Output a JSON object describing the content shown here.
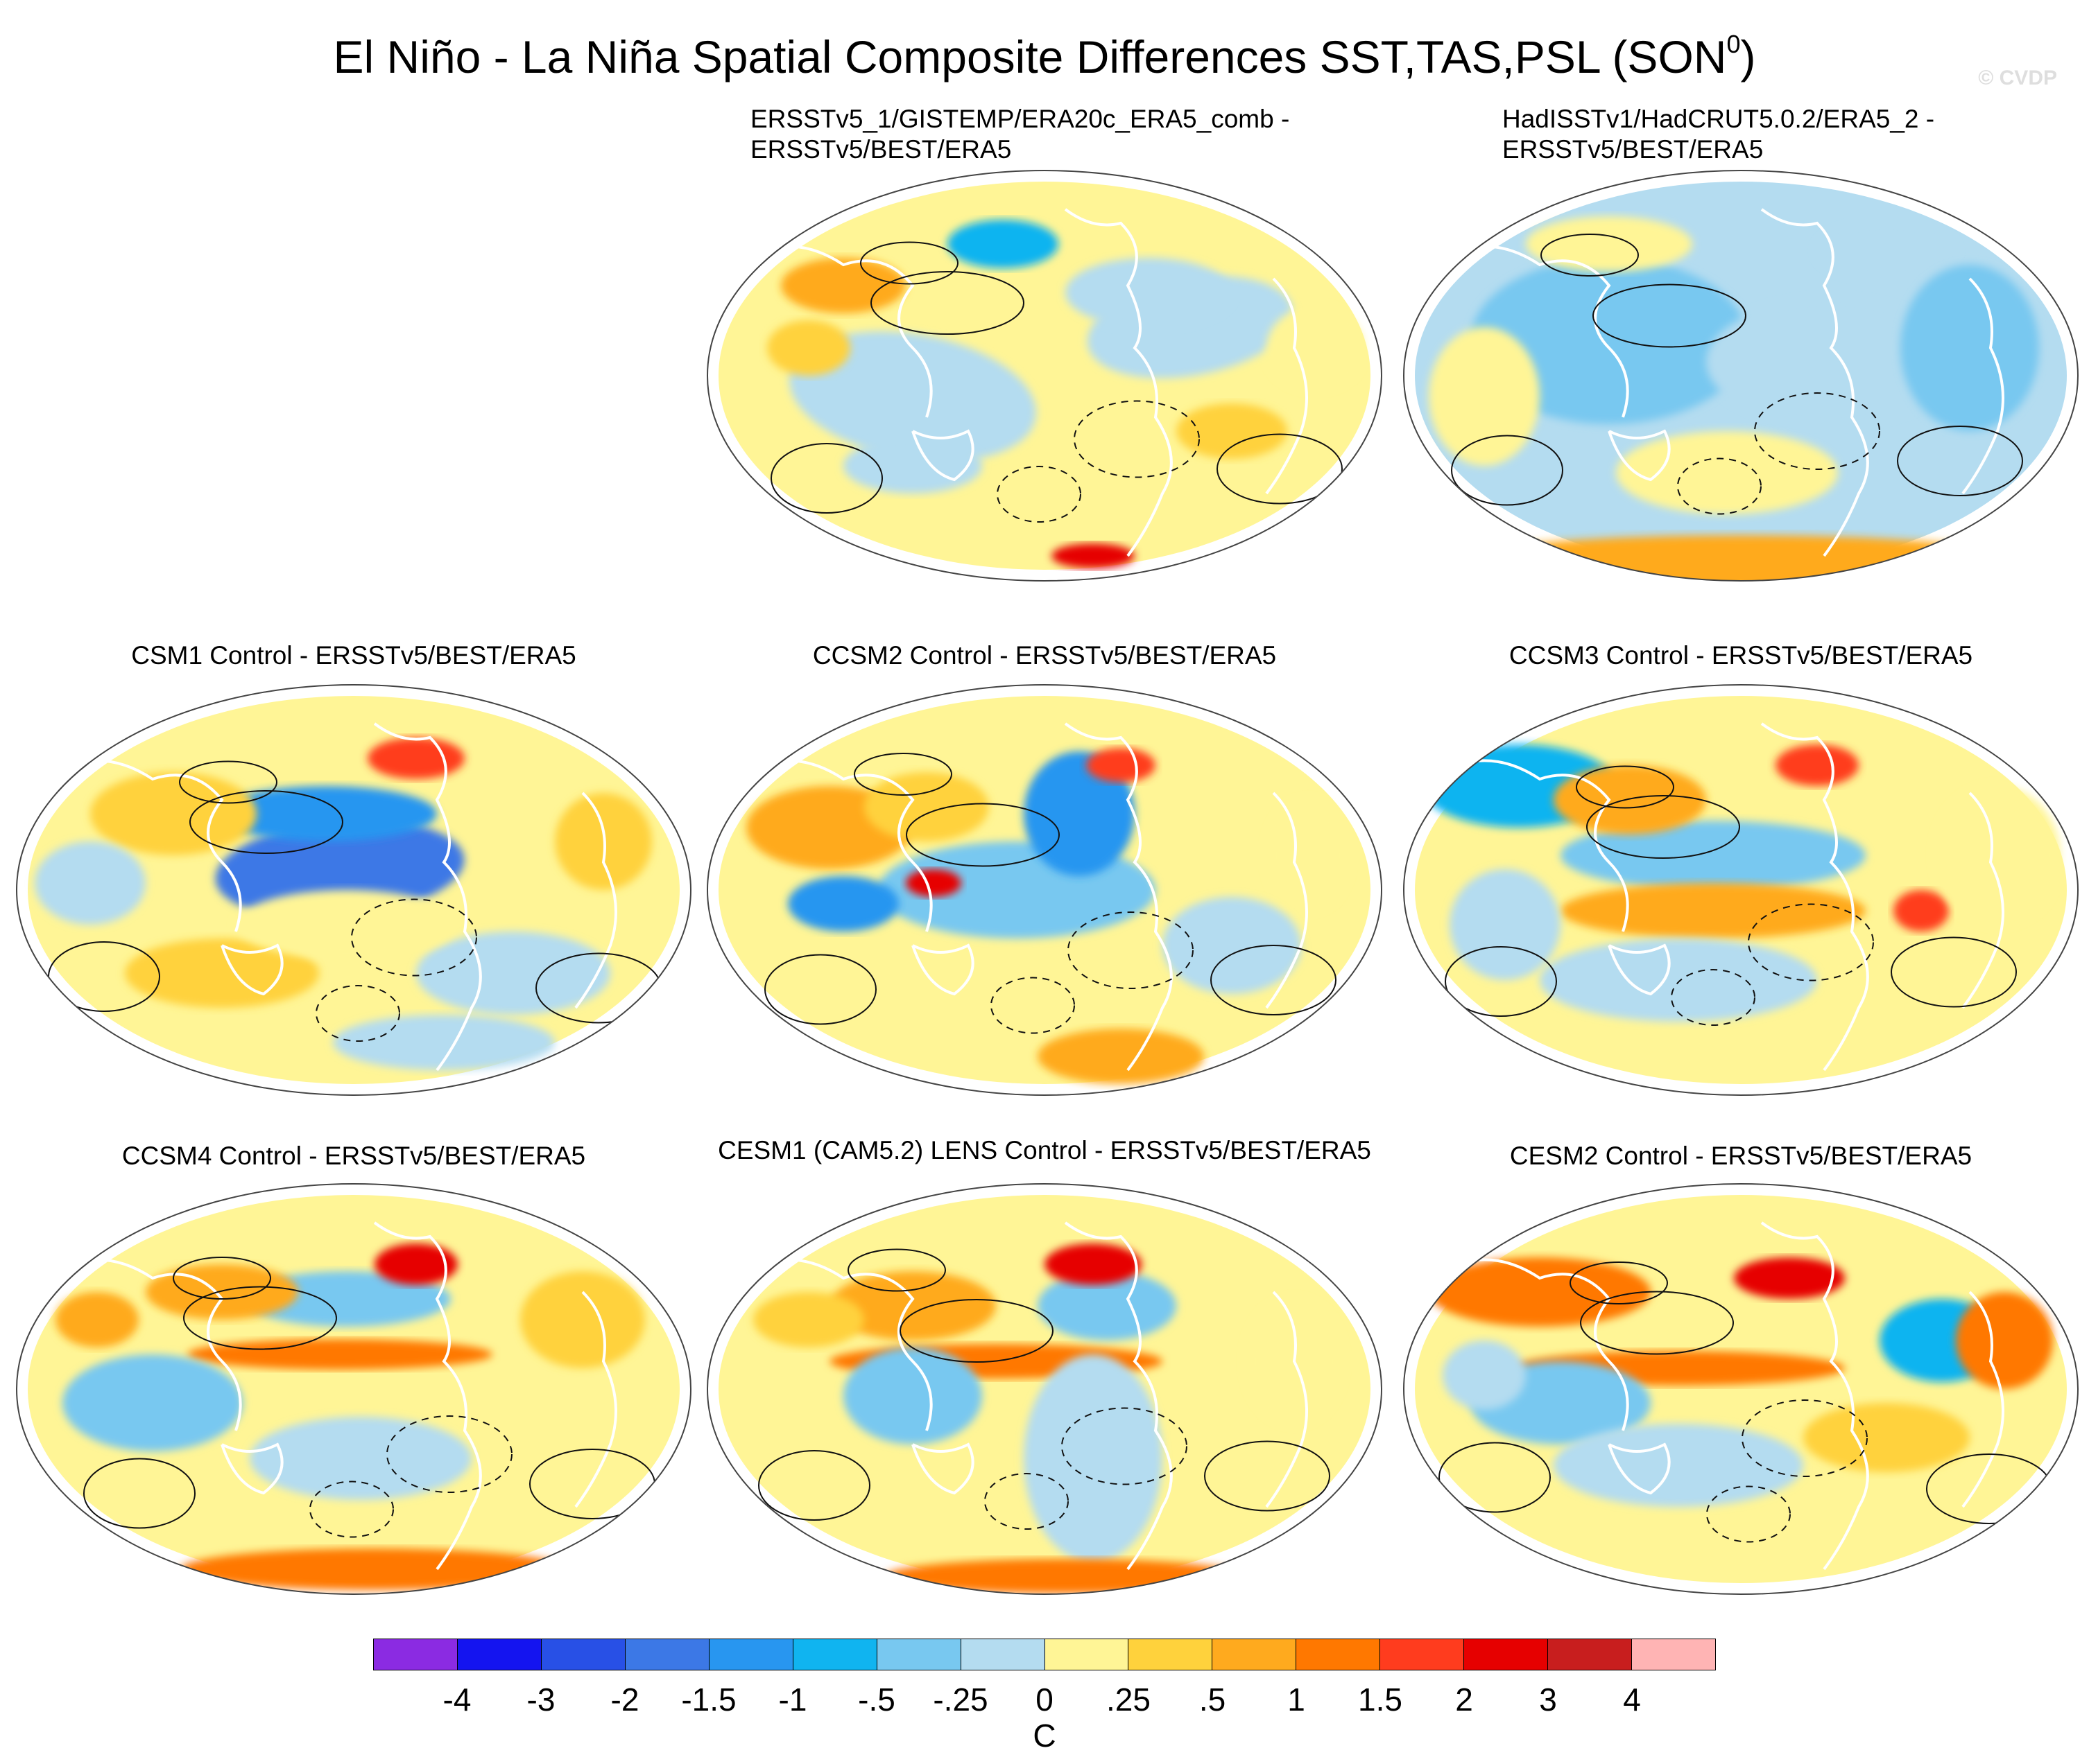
{
  "title": {
    "main": "El Niño - La Niña Spatial Composite Differences SST,TAS,PSL (SON",
    "superscript": "0",
    "close": ")"
  },
  "watermark": "© CVDP",
  "panels": [
    {
      "title_line1": "ERSSTv5_1/GISTEMP/ERA20c_ERA5_comb -",
      "title_line2": "ERSSTv5/BEST/ERA5",
      "palette": "obs1"
    },
    {
      "title_line1": "HadISSTv1/HadCRUT5.0.2/ERA5_2 -",
      "title_line2": "ERSSTv5/BEST/ERA5",
      "palette": "obs2"
    },
    {
      "title_line1": "CSM1 Control - ERSSTv5/BEST/ERA5",
      "title_line2": "",
      "palette": "csm1"
    },
    {
      "title_line1": "CCSM2 Control - ERSSTv5/BEST/ERA5",
      "title_line2": "",
      "palette": "ccsm2"
    },
    {
      "title_line1": "CCSM3 Control - ERSSTv5/BEST/ERA5",
      "title_line2": "",
      "palette": "ccsm3"
    },
    {
      "title_line1": "CCSM4 Control - ERSSTv5/BEST/ERA5",
      "title_line2": "",
      "palette": "ccsm4"
    },
    {
      "title_line1": "CESM1 (CAM5.2) LENS Control - ERSSTv5/BEST/ERA5",
      "title_line2": "",
      "palette": "cesm1"
    },
    {
      "title_line1": "CESM2 Control - ERSSTv5/BEST/ERA5",
      "title_line2": "",
      "palette": "cesm2"
    }
  ],
  "colorbar": {
    "colors": [
      "#8b2be2",
      "#1414f0",
      "#2850e6",
      "#3c78e6",
      "#2896f0",
      "#10b4f0",
      "#78c8f0",
      "#b4dcf0",
      "#fff596",
      "#ffd23c",
      "#ffaa1e",
      "#ff7800",
      "#ff3c1e",
      "#e60000",
      "#c81e1e",
      "#ffb4b4"
    ],
    "labels": [
      "-4",
      "-3",
      "-2",
      "-1.5",
      "-1",
      "-.5",
      "-.25",
      "0",
      ".25",
      ".5",
      "1",
      "1.5",
      "2",
      "3",
      "4"
    ],
    "units": "C"
  }
}
